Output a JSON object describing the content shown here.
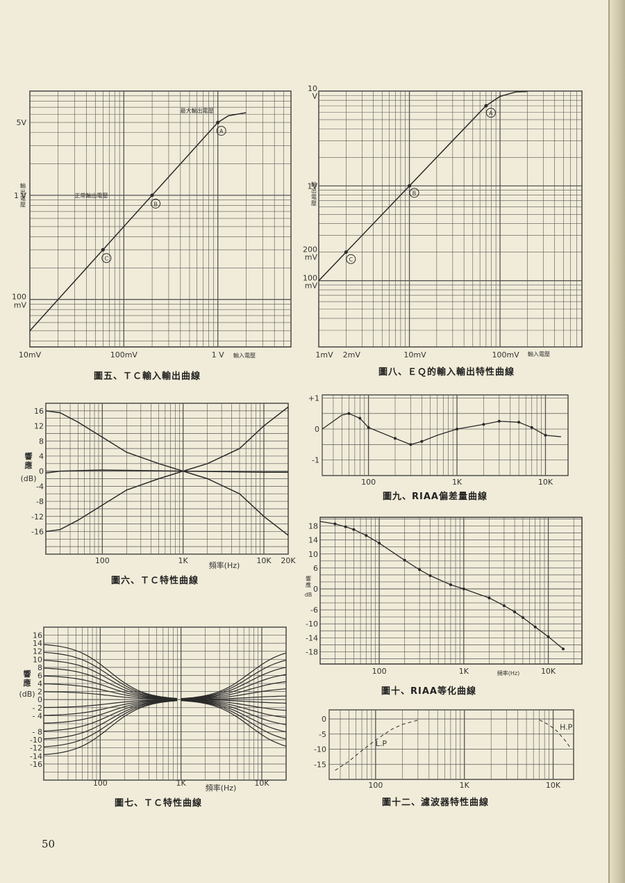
{
  "page_number": "50",
  "colors": {
    "paper": "#f1ecd9",
    "ink": "#2a2a2a",
    "grid": "#555555"
  },
  "chart_data": [
    {
      "id": "fig5",
      "type": "line",
      "caption": "圖五、ＴＣ輸入輸出曲線",
      "xscale": "log",
      "yscale": "log",
      "xlim": [
        0.01,
        6
      ],
      "ylim": [
        0.035,
        10
      ],
      "x_tick_labels": [
        {
          "v": 0.01,
          "t": "10mV"
        },
        {
          "v": 0.1,
          "t": "100mV"
        },
        {
          "v": 1,
          "t": "1 V"
        }
      ],
      "y_tick_labels": [
        {
          "v": 5,
          "t": [
            "5V"
          ]
        },
        {
          "v": 1,
          "t": [
            "1 V"
          ]
        },
        {
          "v": 0.1,
          "t": [
            "100",
            "mV"
          ]
        }
      ],
      "xlabel": "輸入電壓",
      "ylabel": "輸出電壓",
      "annotations": [
        {
          "x": 0.6,
          "y": 6.5,
          "t": "最大輸出電壓"
        },
        {
          "x": 0.045,
          "y": 1.0,
          "t": "正常輸出電壓"
        }
      ],
      "markers": [
        {
          "x": 0.06,
          "y": 0.3,
          "t": "C"
        },
        {
          "x": 0.2,
          "y": 1.0,
          "t": "B"
        },
        {
          "x": 1.0,
          "y": 5.0,
          "t": "A"
        }
      ],
      "series": [
        {
          "x": [
            0.01,
            0.03,
            0.06,
            0.1,
            0.2,
            0.4,
            0.7,
            1.0,
            1.3,
            2.0
          ],
          "y": [
            0.05,
            0.15,
            0.3,
            0.5,
            1.0,
            2.0,
            3.5,
            5.0,
            5.8,
            6.2
          ]
        }
      ]
    },
    {
      "id": "fig8",
      "type": "line",
      "caption": "圖八、ＥＱ的輸入輸出特性曲線",
      "xscale": "log",
      "yscale": "log",
      "xlim": [
        0.001,
        0.8
      ],
      "ylim": [
        0.02,
        10
      ],
      "x_tick_labels": [
        {
          "v": 0.001,
          "t": "1mV"
        },
        {
          "v": 0.002,
          "t": "2mV"
        },
        {
          "v": 0.01,
          "t": "10mV"
        },
        {
          "v": 0.1,
          "t": "100mV"
        }
      ],
      "y_tick_labels": [
        {
          "v": 10,
          "t": [
            "10",
            "V"
          ]
        },
        {
          "v": 1,
          "t": [
            "1V"
          ]
        },
        {
          "v": 0.2,
          "t": [
            "200",
            "mV"
          ]
        },
        {
          "v": 0.1,
          "t": [
            "100",
            "mV"
          ]
        }
      ],
      "xlabel": "輸入電壓",
      "ylabel": "輸出電壓",
      "markers": [
        {
          "x": 0.002,
          "y": 0.2,
          "t": "C"
        },
        {
          "x": 0.01,
          "y": 1.0,
          "t": "B"
        },
        {
          "x": 0.07,
          "y": 7.0,
          "t": "A"
        }
      ],
      "series": [
        {
          "x": [
            0.001,
            0.002,
            0.005,
            0.01,
            0.03,
            0.07,
            0.1,
            0.15,
            0.2
          ],
          "y": [
            0.1,
            0.2,
            0.5,
            1.0,
            3.0,
            7.0,
            8.8,
            9.8,
            9.9
          ]
        }
      ]
    },
    {
      "id": "fig6",
      "type": "line",
      "caption": "圖六、ＴＣ特性曲線",
      "xscale": "log",
      "xlim": [
        20,
        20000
      ],
      "ylim": [
        -22,
        18
      ],
      "x_tick_labels": [
        {
          "v": 100,
          "t": "100"
        },
        {
          "v": 1000,
          "t": "1K"
        },
        {
          "v": 10000,
          "t": "10K"
        },
        {
          "v": 20000,
          "t": "20K"
        }
      ],
      "y_ticks": [
        16,
        12,
        8,
        4,
        0,
        -4,
        -8,
        -12,
        -16
      ],
      "xlabel": "頻率(Hz)",
      "ylabel": [
        "響",
        "應",
        "(dB)"
      ],
      "series": [
        {
          "x": [
            20,
            30,
            50,
            100,
            200,
            500,
            1000,
            2000,
            5000,
            10000,
            20000
          ],
          "y": [
            16,
            15.5,
            13,
            9,
            5,
            2,
            0,
            -2,
            -6,
            -12,
            -17
          ]
        },
        {
          "x": [
            20,
            30,
            50,
            100,
            200,
            500,
            1000,
            2000,
            5000,
            10000,
            20000
          ],
          "y": [
            -16,
            -15.5,
            -13,
            -9,
            -5,
            -2,
            0,
            2,
            6,
            12,
            17
          ]
        },
        {
          "x": [
            20,
            30,
            100,
            1000,
            10000,
            20000
          ],
          "y": [
            -0.5,
            0,
            0.3,
            0,
            -0.3,
            -0.3
          ]
        }
      ]
    },
    {
      "id": "fig9",
      "type": "line",
      "caption": "圖九、RIAA偏差量曲線",
      "xscale": "log",
      "xlim": [
        30,
        18000
      ],
      "ylim": [
        -1.5,
        1.1
      ],
      "x_tick_labels": [
        {
          "v": 100,
          "t": "100"
        },
        {
          "v": 1000,
          "t": "1K"
        },
        {
          "v": 10000,
          "t": "10K"
        }
      ],
      "y_tick_labels": [
        {
          "v": 1,
          "t": "+1"
        },
        {
          "v": 0,
          "t": "0"
        },
        {
          "v": -1,
          "t": "-1"
        }
      ],
      "series": [
        {
          "x": [
            30,
            40,
            50,
            60,
            80,
            100,
            200,
            300,
            400,
            600,
            1000,
            2000,
            3000,
            5000,
            7000,
            10000,
            15000
          ],
          "y": [
            0,
            0.25,
            0.45,
            0.5,
            0.35,
            0.05,
            -0.3,
            -0.5,
            -0.4,
            -0.2,
            0,
            0.15,
            0.25,
            0.22,
            0.05,
            -0.2,
            -0.25
          ],
          "point_x": [
            60,
            80,
            100,
            200,
            300,
            400,
            1000,
            2000,
            3000,
            5000,
            7000,
            10000
          ]
        }
      ]
    },
    {
      "id": "fig10",
      "type": "line",
      "caption": "圖十、RIAA等化曲線",
      "xscale": "log",
      "xlim": [
        20,
        25000
      ],
      "ylim": [
        -21.5,
        20.5
      ],
      "x_tick_labels": [
        {
          "v": 100,
          "t": "100"
        },
        {
          "v": 1000,
          "t": "1K"
        },
        {
          "v": 10000,
          "t": "10K"
        }
      ],
      "y_ticks": [
        18,
        14,
        10,
        6,
        0,
        -6,
        -10,
        -14,
        -18
      ],
      "xlabel": "頻率(Hz)",
      "ylabel": "響應",
      "ylabel_unit": "dB",
      "series": [
        {
          "x": [
            20,
            30,
            40,
            50,
            70,
            100,
            200,
            300,
            400,
            700,
            1000,
            2000,
            3000,
            4000,
            5000,
            7000,
            10000,
            15000
          ],
          "y": [
            19.3,
            18.6,
            17.8,
            17,
            15.3,
            13.1,
            8.2,
            5.5,
            3.8,
            1.2,
            0,
            -2.6,
            -4.8,
            -6.6,
            -8.2,
            -10.9,
            -13.7,
            -17.2
          ],
          "point_x": [
            30,
            40,
            50,
            70,
            100,
            200,
            300,
            400,
            700,
            1000,
            2000,
            3000,
            4000,
            5000,
            7000,
            10000,
            15000
          ]
        }
      ]
    },
    {
      "id": "fig7",
      "type": "line",
      "caption": "圖七、ＴＣ特性曲線",
      "xscale": "log",
      "xlim": [
        20,
        20000
      ],
      "ylim": [
        -20,
        18
      ],
      "x_tick_labels": [
        {
          "v": 100,
          "t": "100"
        },
        {
          "v": 1000,
          "t": "1K"
        },
        {
          "v": 10000,
          "t": "10K"
        }
      ],
      "y_ticks": [
        16,
        14,
        12,
        10,
        8,
        6,
        4,
        2,
        0,
        -2,
        -4,
        -8,
        -10,
        -12,
        -14,
        -16
      ],
      "y_tick_labels_shown": [
        "16",
        "14",
        "12",
        "10",
        "8",
        "6",
        "4",
        "2",
        "0",
        "- 2",
        "- 4",
        "- 8",
        "-10",
        "-12",
        "-14",
        "-16"
      ],
      "xlabel": "頻率(Hz)",
      "ylabel": [
        "響",
        "應",
        "(dB)"
      ],
      "bass_levels": [
        14,
        12,
        10,
        8,
        6,
        4,
        2,
        -2,
        -4,
        -6,
        -8,
        -10,
        -12,
        -14
      ],
      "treble_levels": [
        13,
        11,
        9,
        7,
        5,
        3,
        1,
        -1,
        -3,
        -5,
        -7,
        -9,
        -11,
        -13
      ],
      "bass_corner_hz": 130,
      "treble_corner_hz": 7000
    },
    {
      "id": "fig12",
      "type": "line",
      "caption": "圖十二、濾波器特性曲線",
      "xscale": "log",
      "xlim": [
        30,
        17000
      ],
      "ylim": [
        -20,
        3
      ],
      "x_tick_labels": [
        {
          "v": 100,
          "t": "100"
        },
        {
          "v": 1000,
          "t": "1K"
        },
        {
          "v": 10000,
          "t": "10K"
        }
      ],
      "y_ticks": [
        0,
        -5,
        -10,
        -15
      ],
      "series": [
        {
          "name": "L.P",
          "style": "dashed",
          "x": [
            35,
            50,
            70,
            100,
            150,
            200,
            300
          ],
          "y": [
            -17,
            -14,
            -10.5,
            -7,
            -3.5,
            -1.8,
            -0.4
          ]
        },
        {
          "name": "H.P",
          "style": "dashed",
          "x": [
            7000,
            9000,
            11000,
            14000,
            16000
          ],
          "y": [
            -0.3,
            -2,
            -4,
            -7.5,
            -10
          ]
        }
      ]
    }
  ]
}
